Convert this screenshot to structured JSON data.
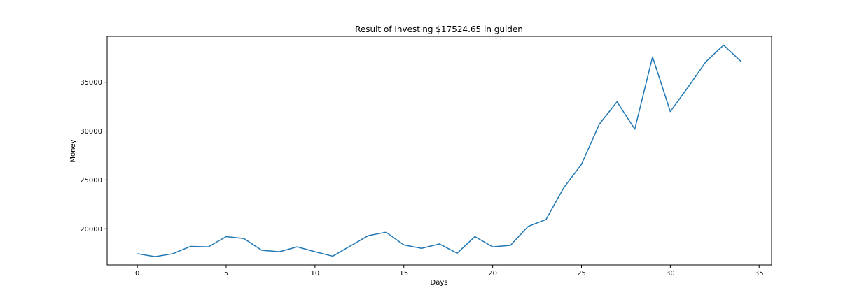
{
  "chart_data": {
    "type": "line",
    "title": "Result of Investing $17524.65 in gulden",
    "xlabel": "Days",
    "ylabel": "Money",
    "xlim": [
      -1.7,
      35.7
    ],
    "ylim": [
      16300,
      39700
    ],
    "xticks": [
      0,
      5,
      10,
      15,
      20,
      25,
      30,
      35
    ],
    "yticks": [
      20000,
      25000,
      30000,
      35000
    ],
    "grid": false,
    "series": [
      {
        "color": "#1f77b4",
        "x": [
          0,
          1,
          2,
          3,
          4,
          5,
          6,
          7,
          8,
          9,
          10,
          11,
          12,
          13,
          14,
          15,
          16,
          17,
          18,
          19,
          20,
          21,
          22,
          23,
          24,
          25,
          26,
          27,
          28,
          29,
          30,
          31,
          32,
          33,
          34
        ],
        "values": [
          17450,
          17150,
          17450,
          18200,
          18150,
          19200,
          19000,
          17800,
          17650,
          18150,
          17650,
          17200,
          18250,
          19300,
          19650,
          18350,
          18000,
          18450,
          17500,
          19200,
          18150,
          18300,
          20250,
          20950,
          24200,
          26600,
          30700,
          33000,
          30200,
          37600,
          32000,
          34500,
          37100,
          38800,
          37100
        ]
      }
    ]
  }
}
